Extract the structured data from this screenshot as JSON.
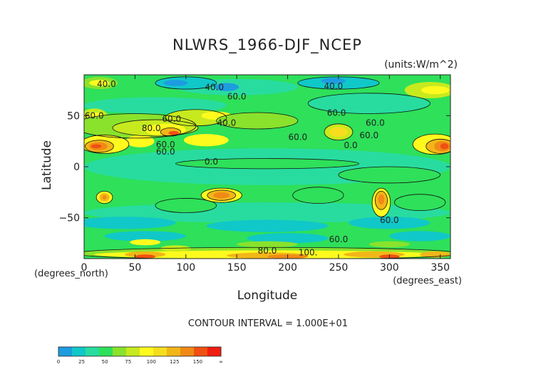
{
  "chart_data": {
    "type": "heatmap",
    "title": "NLWRS_1966-DJF_NCEP",
    "units_label": "(units:W/m^2)",
    "xlabel": "Longitude",
    "ylabel": "Latitude",
    "x_unit_label": "(degrees_east)",
    "y_unit_label": "(degrees_north)",
    "xlim": [
      0,
      360
    ],
    "ylim": [
      -90,
      90
    ],
    "x_ticks": [
      0,
      50,
      100,
      150,
      200,
      250,
      300,
      350
    ],
    "y_ticks": [
      -50,
      0,
      50
    ],
    "contour_interval_text": "CONTOUR INTERVAL = 1.000E+01",
    "contour_labels": [
      {
        "text": "40.0",
        "x": 22,
        "y": 78
      },
      {
        "text": "60.0",
        "x": 10,
        "y": 47
      },
      {
        "text": "60.0",
        "x": 80,
        "y": 12
      },
      {
        "text": "80.0",
        "x": 66,
        "y": 35
      },
      {
        "text": "60.0",
        "x": 86,
        "y": 44
      },
      {
        "text": "60.0",
        "x": 80,
        "y": 19
      },
      {
        "text": "0.0",
        "x": 125,
        "y": 2
      },
      {
        "text": "40.0",
        "x": 140,
        "y": 40
      },
      {
        "text": "60.0",
        "x": 210,
        "y": 26
      },
      {
        "text": "60.0",
        "x": 280,
        "y": 28
      },
      {
        "text": "40.0",
        "x": 128,
        "y": 75
      },
      {
        "text": "60.0",
        "x": 150,
        "y": 66
      },
      {
        "text": "40.0",
        "x": 245,
        "y": 76
      },
      {
        "text": "60.0",
        "x": 248,
        "y": 50
      },
      {
        "text": "60.0",
        "x": 286,
        "y": 40
      },
      {
        "text": "0.0",
        "x": 262,
        "y": 18
      },
      {
        "text": "60.0",
        "x": 300,
        "y": -55
      },
      {
        "text": "60.0",
        "x": 250,
        "y": -74
      },
      {
        "text": "80.0",
        "x": 180,
        "y": -85
      },
      {
        "text": "100.",
        "x": 220,
        "y": -87
      }
    ],
    "colorbar": {
      "tick_labels": [
        "0",
        "25",
        "50",
        "75",
        "100",
        "125",
        "150",
        "∞"
      ],
      "colors": [
        "#1e9ce0",
        "#10c8c8",
        "#28dca0",
        "#2ee05a",
        "#8ae22c",
        "#c6ea1e",
        "#fffa1e",
        "#f6de1e",
        "#f2b618",
        "#f08a16",
        "#f05012",
        "#f01e10"
      ]
    },
    "level_colors": {
      "l0": "#1e9ce0",
      "l20": "#10c8c8",
      "l40": "#28dca0",
      "l55": "#2ee05a",
      "l65": "#8ae22c",
      "l75": "#c6ea1e",
      "l85": "#fffa1e",
      "l95": "#f6de1e",
      "l110": "#f2b618",
      "l125": "#f08a16",
      "l140": "#f05012",
      "l155": "#f01e10"
    }
  }
}
